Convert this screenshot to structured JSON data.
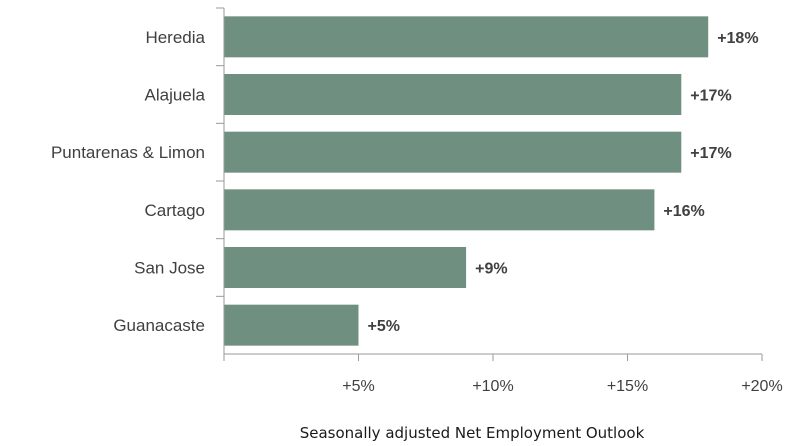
{
  "chart_data": {
    "type": "bar",
    "orientation": "horizontal",
    "categories": [
      "Heredia",
      "Alajuela",
      "Puntarenas & Limon",
      "Cartago",
      "San Jose",
      "Guanacaste"
    ],
    "values": [
      18,
      17,
      17,
      16,
      9,
      5
    ],
    "data_labels": [
      "+18%",
      "+17%",
      "+17%",
      "+16%",
      "+9%",
      "+5%"
    ],
    "xticks": [
      5,
      10,
      15,
      20
    ],
    "xtick_labels": [
      "+5%",
      "+10%",
      "+15%",
      "+20%"
    ],
    "xlim": [
      0,
      20
    ],
    "xlabel": "Seasonally adjusted Net Employment Outlook",
    "title": "",
    "grid": false,
    "legend": "none",
    "bar_color": "#6f9080",
    "axis_color": "#9a9a9a",
    "text_color": "#404040"
  }
}
